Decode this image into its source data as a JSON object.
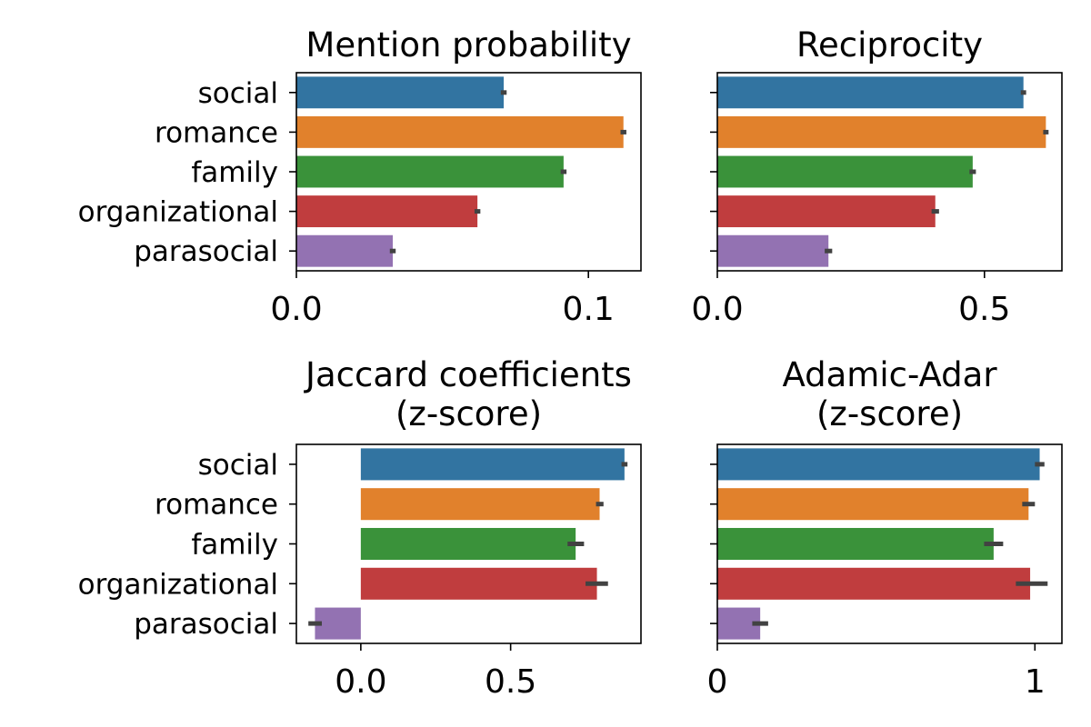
{
  "chart_data": [
    {
      "type": "bar",
      "orientation": "horizontal",
      "title_lines": [
        "Mention probability"
      ],
      "categories": [
        "social",
        "romance",
        "family",
        "organizational",
        "parasocial"
      ],
      "show_category_labels": true,
      "values": [
        0.071,
        0.112,
        0.0915,
        0.062,
        0.033
      ],
      "error": [
        [
          0.07,
          0.072
        ],
        [
          0.111,
          0.113
        ],
        [
          0.0905,
          0.0925
        ],
        [
          0.061,
          0.063
        ],
        [
          0.032,
          0.034
        ]
      ],
      "xlim": [
        0.0,
        0.118
      ],
      "xticks": [
        0.0,
        0.1
      ],
      "xtick_labels": [
        "0.0",
        "0.1"
      ],
      "colors": [
        "#3274a1",
        "#e1812c",
        "#3a923a",
        "#c03d3e",
        "#9372b2"
      ]
    },
    {
      "type": "bar",
      "orientation": "horizontal",
      "title_lines": [
        "Reciprocity"
      ],
      "categories": [
        "social",
        "romance",
        "family",
        "organizational",
        "parasocial"
      ],
      "show_category_labels": false,
      "values": [
        0.573,
        0.615,
        0.478,
        0.408,
        0.208
      ],
      "error": [
        [
          0.568,
          0.578
        ],
        [
          0.61,
          0.62
        ],
        [
          0.472,
          0.484
        ],
        [
          0.401,
          0.415
        ],
        [
          0.201,
          0.215
        ]
      ],
      "xlim": [
        0.0,
        0.645
      ],
      "xticks": [
        0.0,
        0.5
      ],
      "xtick_labels": [
        "0.0",
        "0.5"
      ],
      "colors": [
        "#3274a1",
        "#e1812c",
        "#3a923a",
        "#c03d3e",
        "#9372b2"
      ]
    },
    {
      "type": "bar",
      "orientation": "horizontal",
      "title_lines": [
        "Jaccard coefficients",
        "(z-score)"
      ],
      "categories": [
        "social",
        "romance",
        "family",
        "organizational",
        "parasocial"
      ],
      "show_category_labels": true,
      "values": [
        0.88,
        0.797,
        0.717,
        0.788,
        -0.153
      ],
      "error": [
        [
          0.87,
          0.89
        ],
        [
          0.785,
          0.81
        ],
        [
          0.69,
          0.745
        ],
        [
          0.75,
          0.825
        ],
        [
          -0.175,
          -0.13
        ]
      ],
      "xlim": [
        -0.215,
        0.935
      ],
      "xticks": [
        0.0,
        0.5
      ],
      "xtick_labels": [
        "0.0",
        "0.5"
      ],
      "colors": [
        "#3274a1",
        "#e1812c",
        "#3a923a",
        "#c03d3e",
        "#9372b2"
      ]
    },
    {
      "type": "bar",
      "orientation": "horizontal",
      "title_lines": [
        "Adamic-Adar",
        "(z-score)"
      ],
      "categories": [
        "social",
        "romance",
        "family",
        "organizational",
        "parasocial"
      ],
      "show_category_labels": false,
      "values": [
        1.015,
        0.98,
        0.87,
        0.985,
        0.135
      ],
      "error": [
        [
          1.0,
          1.03
        ],
        [
          0.96,
          1.0
        ],
        [
          0.84,
          0.9
        ],
        [
          0.94,
          1.04
        ],
        [
          0.11,
          0.16
        ]
      ],
      "xlim": [
        0.0,
        1.085
      ],
      "xticks": [
        0,
        1
      ],
      "xtick_labels": [
        "0",
        "1"
      ],
      "colors": [
        "#3274a1",
        "#e1812c",
        "#3a923a",
        "#c03d3e",
        "#9372b2"
      ]
    }
  ]
}
